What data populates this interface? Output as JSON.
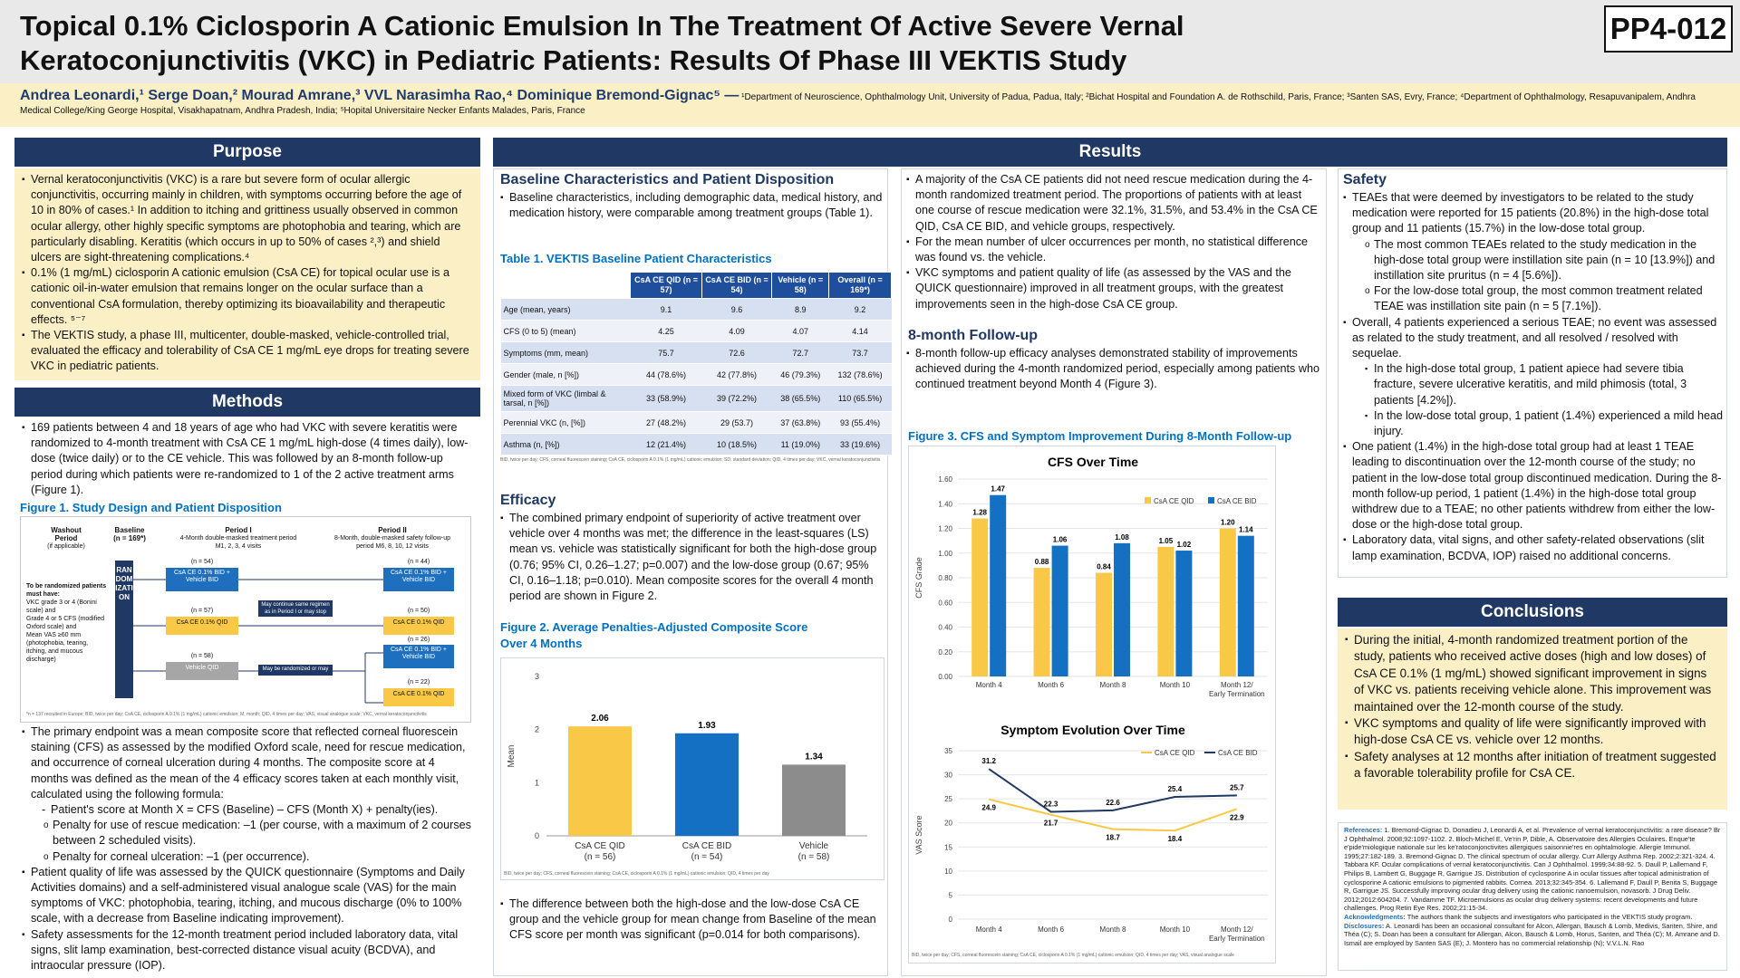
{
  "header": {
    "title": "Topical 0.1% Ciclosporin A Cationic Emulsion In The Treatment Of Active Severe Vernal Keratoconjunctivitis (VKC) in Pediatric Patients: Results Of Phase III VEKTIS Study",
    "poster_id": "PP4-012",
    "authors": "Andrea Leonardi,¹ Serge Doan,² Mourad Amrane,³ VVL Narasimha Rao,⁴ Dominique Bremond-Gignac⁵ —",
    "affiliations": "¹Department of Neuroscience, Ophthalmology Unit, University of Padua, Padua, Italy; ²Bichat Hospital and Foundation A. de Rothschild, Paris, France; ³Santen SAS, Evry, France; ⁴Department of Ophthalmology, Resapuvanipalem, Andhra Medical College/King George Hospital, Visakhapatnam, Andhra Pradesh, India; ⁵Hopital Universitaire Necker Enfants Malades, Paris, France"
  },
  "purpose": {
    "heading": "Purpose",
    "bullets": [
      "Vernal keratoconjunctivitis (VKC) is a rare but severe form of ocular allergic conjunctivitis, occurring mainly in children, with symptoms occurring before the age of 10 in 80% of cases.¹ In addition to itching and grittiness usually observed in common ocular allergy, other highly specific symptoms are photophobia and tearing, which are particularly disabling. Keratitis (which occurs in up to 50% of cases ²,³) and shield ulcers are sight-threatening complications.⁴",
      "0.1% (1 mg/mL) ciclosporin A cationic emulsion (CsA CE) for topical ocular use is a cationic oil-in-water emulsion that remains longer on the ocular surface than a conventional CsA formulation, thereby optimizing its bioavailability and therapeutic effects. ⁵⁻⁷",
      "The VEKTIS study, a phase III, multicenter, double-masked, vehicle-controlled trial, evaluated the efficacy and tolerability of CsA CE 1 mg/mL eye drops for treating severe VKC in pediatric patients."
    ]
  },
  "methods": {
    "heading": "Methods",
    "intro": "169 patients between 4 and 18 years of age who had VKC with severe keratitis were randomized to 4-month treatment with CsA CE 1 mg/mL high-dose (4 times daily), low-dose (twice daily) or to the CE vehicle. This was followed by an 8-month follow-up period during which patients were re-randomized to 1 of the 2 active treatment arms (Figure 1).",
    "fig1_caption": "Figure 1. Study Design and Patient Disposition",
    "fig1": {
      "col_washout": "Washout Period",
      "col_washout_sub": "(if applicable)",
      "col_baseline": "Baseline",
      "col_baseline_n": "(n = 169*)",
      "col_p1": "Period I",
      "col_p1_sub": "4-Month double-masked treatment period M1, 2, 3, 4 visits",
      "col_p2": "Period II",
      "col_p2_sub": "8-Month, double-masked safety follow-up period M6, 8, 10, 12 visits",
      "criteria_title": "To be randomized patients must have:",
      "criteria": [
        "VKC grade 3 or 4 (Bonini scale) and",
        "Grade 4 or 5 CFS (modified Oxford scale) and",
        "Mean VAS ≥60 mm (photophobia, tearing, itching, and mucous discharge)"
      ],
      "randomization": "RANDOMIZATION",
      "p1_arms": [
        {
          "n": "(n = 54)",
          "label": "CsA CE 0.1% BID + Vehicle BID"
        },
        {
          "n": "(n = 57)",
          "label": "CsA CE 0.1% QID"
        },
        {
          "n": "(n = 58)",
          "label": "Vehicle QID"
        }
      ],
      "note_continue": "May continue same regimen as in Period I or may stop",
      "note_rerandom": "May be randomized or may stop",
      "p2_arms": [
        {
          "n": "(n = 44)",
          "label": "CsA CE 0.1% BID + Vehicle BID"
        },
        {
          "n": "(n = 50)",
          "label": "CsA CE 0.1% QID"
        },
        {
          "n": "(n = 26)",
          "label": "CsA CE 0.1% BID + Vehicle BID"
        },
        {
          "n": "(n = 22)",
          "label": "CsA CE 0.1% QID"
        }
      ],
      "footnote": "*n = 137 recruited in Europe; BID, twice per day; CsA CE, ciclosporin A 0.1% (1 mg/mL) cationic emulsion; M, month; QID, 4 times per day; VAS, visual analogue scale; VKC, vernal keratoconjunctivitis"
    },
    "endpoint": "The primary endpoint was a mean composite score that reflected corneal fluorescein staining (CFS) as assessed by the modified Oxford scale, need for rescue medication, and occurrence of corneal ulceration during 4 months. The composite score at 4 months was defined as the mean of the 4 efficacy scores taken at each monthly visit, calculated using the following formula:",
    "formula": "Patient's score at Month X = CFS (Baseline) – CFS (Month X) + penalty(ies).",
    "penalties": [
      "Penalty for use of rescue medication: –1 (per course, with a maximum of 2 courses between 2 scheduled visits).",
      "Penalty for corneal ulceration: –1 (per occurrence)."
    ],
    "qol": "Patient quality of life was assessed by the QUICK questionnaire (Symptoms and Daily Activities domains) and a self-administered visual analogue scale (VAS) for the main symptoms of VKC: photophobia, tearing, itching, and mucous discharge (0% to 100% scale, with a decrease from Baseline indicating improvement).",
    "safety": "Safety assessments for the 12-month treatment period included laboratory data, vital signs, slit lamp examination, best-corrected distance visual acuity (BCDVA), and intraocular pressure (IOP)."
  },
  "results": {
    "heading": "Results",
    "baseline_head": "Baseline Characteristics and Patient Disposition",
    "baseline_text": "Baseline characteristics, including demographic data, medical history, and medication history, were comparable among treatment groups (Table 1).",
    "table_caption": "Table 1. VEKTIS Baseline Patient Characteristics",
    "table": {
      "headers": [
        "",
        "CsA CE QID (n = 57)",
        "CsA CE BID (n = 54)",
        "Vehicle (n = 58)",
        "Overall (n = 169*)"
      ],
      "rows": [
        [
          "Age (mean, years)",
          "9.1",
          "9.6",
          "8.9",
          "9.2"
        ],
        [
          "CFS (0 to 5) (mean)",
          "4.25",
          "4.09",
          "4.07",
          "4.14"
        ],
        [
          "Symptoms (mm, mean)",
          "75.7",
          "72.6",
          "72.7",
          "73.7"
        ],
        [
          "Gender (male, n [%])",
          "44 (78.6%)",
          "42 (77.8%)",
          "46 (79.3%)",
          "132 (78.6%)"
        ],
        [
          "Mixed form of VKC (limbal & tarsal, n [%])",
          "33 (58.9%)",
          "39 (72.2%)",
          "38 (65.5%)",
          "110 (65.5%)"
        ],
        [
          "Perennial VKC (n, [%])",
          "27 (48.2%)",
          "29 (53.7)",
          "37 (63.8%)",
          "93 (55.4%)"
        ],
        [
          "Asthma (n, [%])",
          "12 (21.4%)",
          "10 (18.5%)",
          "11 (19.0%)",
          "33 (19.6%)"
        ]
      ],
      "note": "BID, twice per day; CFS, corneal fluorescein staining; CsA CE, ciclosporin A 0.1% (1 mg/mL) cationic emulsion; SD, standard deviation; QID, 4 times per day; VKC, vernal keratoconjunctivitis"
    },
    "efficacy_head": "Efficacy",
    "efficacy_text": "The combined primary endpoint of superiority of active treatment over vehicle over 4 months was met; the difference in the least-squares (LS) mean vs. vehicle was statistically significant for both the high-dose group (0.76; 95% CI, 0.26–1.27; p=0.007) and the low-dose group (0.67; 95% CI, 0.16–1.18; p=0.010). Mean composite scores for the overall 4 month period are shown in Figure 2.",
    "fig2_caption": "Figure 2. Average Penalties-Adjusted Composite Score Over 4 Months",
    "fig2_note": "BID, twice per day; CFS, corneal fluorescein staining; CsA CE, ciclosporin A 0.1% (1 mg/mL) cationic emulsion; QID, 4 times per day",
    "diff_text": "The difference between both the high-dose and the low-dose CsA CE group and the vehicle group for mean change from Baseline of the mean CFS score per month was significant (p=0.014 for both comparisons).",
    "col3_bullets": [
      "A majority of the CsA CE patients did not need rescue medication during the 4-month randomized treatment period. The proportions of patients with at least one course of rescue medication were 32.1%, 31.5%, and 53.4% in the CsA CE QID, CsA CE BID, and vehicle groups, respectively.",
      "For the mean number of ulcer occurrences per month, no statistical difference was found vs. the vehicle.",
      "VKC symptoms and patient quality of life (as assessed by the VAS and the QUICK questionnaire) improved in all treatment groups, with the greatest improvements seen in the high-dose CsA CE group."
    ],
    "followup_head": "8-month Follow-up",
    "followup_text": "8-month follow-up efficacy analyses demonstrated stability of improvements achieved during the 4-month randomized period, especially among patients who continued treatment beyond Month 4 (Figure 3).",
    "fig3_caption": "Figure 3. CFS and Symptom Improvement During 8-Month Follow-up",
    "fig3_note": "BID, twice per day; CFS, corneal fluorescein staining; CsA CE, ciclosporin A 0.1% (1 mg/mL) cationic emulsion; QID, 4 times per day; VAS, visual analogue scale"
  },
  "safety": {
    "heading": "Safety",
    "b1": "TEAEs that were deemed by investigators to be related to the study medication were reported for 15 patients (20.8%) in the high-dose total group and 11 patients (15.7%) in the low-dose total group.",
    "b1_sub": [
      "The most common TEAEs related to the study medication in the high-dose total group were instillation site pain (n = 10 [13.9%]) and instillation site pruritus (n = 4 [5.6%]).",
      "For the low-dose total group, the most common treatment related TEAE was instillation site pain (n = 5 [7.1%])."
    ],
    "b2": "Overall, 4 patients experienced a serious TEAE; no event was assessed as related to the study treatment, and all resolved / resolved with sequelae.",
    "b2_sub": [
      "In the high-dose total group, 1 patient apiece had severe tibia fracture, severe ulcerative keratitis, and mild phimosis (total, 3 patients [4.2%]).",
      "In the low-dose total group, 1 patient (1.4%) experienced a mild head injury."
    ],
    "b3": "One patient (1.4%) in the high-dose total group had at least 1 TEAE leading to discontinuation over the 12-month course of the study; no patient in the low-dose total group discontinued medication. During the 8-month follow-up period, 1 patient (1.4%) in the high-dose total group withdrew due to a TEAE; no other patients withdrew from either the low-dose or the high-dose total group.",
    "b4": "Laboratory data, vital signs, and other safety-related observations (slit lamp examination, BCDVA, IOP) raised no additional concerns."
  },
  "conclusions": {
    "heading": "Conclusions",
    "bullets": [
      "During the initial, 4-month randomized treatment portion of the study, patients who received active doses (high and low doses) of CsA CE 0.1% (1 mg/mL) showed significant improvement in signs of VKC vs. patients receiving vehicle alone. This improvement was maintained over the 12-month course of the study.",
      "VKC symptoms and quality of life were significantly improved with high-dose CsA CE vs. vehicle over 12 months.",
      "Safety analyses at 12 months after initiation of treatment suggested a favorable tolerability profile for CsA CE."
    ]
  },
  "references": {
    "refs_label": "References:",
    "refs_text": "1. Bremond-Gignac D, Donadieu J, Leonardi A, et al. Prevalence of vernal keratoconjunctivitis: a rare disease? Br J Ophthalmol. 2008;92:1097-1102. 2. Bloch-Michel E, Ve'rin P, Dible, A. Observatoire des Allergies Oculaires. Enque'te e'pide'miologique nationale sur les ke'ratoconjonctivites allergiques saisonnie'res en ophtalmologie. Allergie Immunol. 1995;27:182-189. 3. Bremond-Gignac D. The clinical spectrum of ocular allergy. Curr Allergy Asthma Rep. 2002;2:321-324. 4. Tabbara KF. Ocular complications of vernal keratoconjunctivitis. Can J Ophthalmol. 1999;34:88-92. 5. Daull P, Lallemand F, Philips B, Lambert G, Buggage R, Garrigue JS. Distribution of cyclosporine A in ocular tissues after topical administration of cyclosporine A cationic emulsions to pigmented rabbits. Cornea. 2013;32:345-354. 6. Lallemand F, Daull P, Benita S, Buggage R, Garrigue JS. Successfully improving ocular drug delivery using the cationic nanoemulsion, novasorb. J Drug Deliv. 2012;2012:604204. 7. Vandamme TF. Microemulsions as ocular drug delivery systems: recent developments and future challenges. Prog Retin Eye Res. 2002;21:15-34.",
    "ack_label": "Acknowledgments:",
    "ack_text": "The authors thank the subjects and investigators who participated in the VEKTIS study program.",
    "disc_label": "Disclosures:",
    "disc_text": "A. Leonardi has been an occasional consultant for Alcon, Allergan, Bausch & Lomb, Medivis, Santen, Shire, and Théa (C); S. Doan has been a consultant for Allergan, Alcon, Bausch & Lomb, Horus, Santen, and Théa (C); M. Amrane and D. Ismail are employed by Santen SAS (E); J. Montero has no commercial relationship (N); V.V.L.N. Rao"
  },
  "chart_data": [
    {
      "type": "bar",
      "id": "fig2",
      "categories": [
        "CsA CE QID (n = 56)",
        "CsA CE BID (n = 54)",
        "Vehicle (n = 58)"
      ],
      "values": [
        2.06,
        1.93,
        1.34
      ],
      "value_labels": [
        "2.06",
        "1.93",
        "1.34"
      ],
      "colors": [
        "#f9c846",
        "#1470c2",
        "#8c8c8c"
      ],
      "ylabel": "Mean",
      "ylim": [
        0,
        3
      ],
      "yticks": [
        "0",
        "1",
        "2",
        "3"
      ],
      "grid": false
    },
    {
      "type": "bar",
      "id": "fig3a",
      "title": "CFS Over Time",
      "categories": [
        "Month 4",
        "Month 6",
        "Month 8",
        "Month 10",
        "Month 12/Early Termination"
      ],
      "series": [
        {
          "name": "CsA CE QID",
          "color": "#f9c846",
          "values": [
            1.28,
            0.88,
            0.84,
            1.05,
            1.2
          ],
          "labels": [
            "1.28",
            "0.88",
            "0.84",
            "1.05",
            "1.20"
          ]
        },
        {
          "name": "CsA CE BID",
          "color": "#1470c2",
          "values": [
            1.47,
            1.06,
            1.08,
            1.02,
            1.14
          ],
          "labels": [
            "1.47",
            "1.06",
            "1.08",
            "1.02",
            "1.14"
          ]
        }
      ],
      "ylabel": "CFS Grade",
      "ylim": [
        0,
        1.6
      ],
      "yticks": [
        "0.00",
        "0.20",
        "0.40",
        "0.60",
        "0.80",
        "1.00",
        "1.20",
        "1.40",
        "1.60"
      ],
      "legend": "top-right"
    },
    {
      "type": "line",
      "id": "fig3b",
      "title": "Symptom Evolution Over Time",
      "categories": [
        "Month 4",
        "Month 6",
        "Month 8",
        "Month 10",
        "Month 12/Early Termination"
      ],
      "series": [
        {
          "name": "CsA CE QID",
          "color": "#f9c846",
          "values": [
            24.9,
            21.7,
            18.7,
            18.4,
            22.9
          ],
          "labels": [
            "24.9",
            "21.7",
            "18.7",
            "18.4",
            "22.9"
          ]
        },
        {
          "name": "CsA CE BID",
          "color": "#1f3864",
          "values": [
            31.2,
            22.3,
            22.6,
            25.4,
            25.7
          ],
          "labels": [
            "31.2",
            "22.3",
            "22.6",
            "25.4",
            "25.7"
          ]
        }
      ],
      "ylabel": "VAS Score",
      "ylim": [
        0,
        35
      ],
      "yticks": [
        "0",
        "5",
        "10",
        "15",
        "20",
        "25",
        "30",
        "35"
      ],
      "legend": "top-right"
    }
  ]
}
